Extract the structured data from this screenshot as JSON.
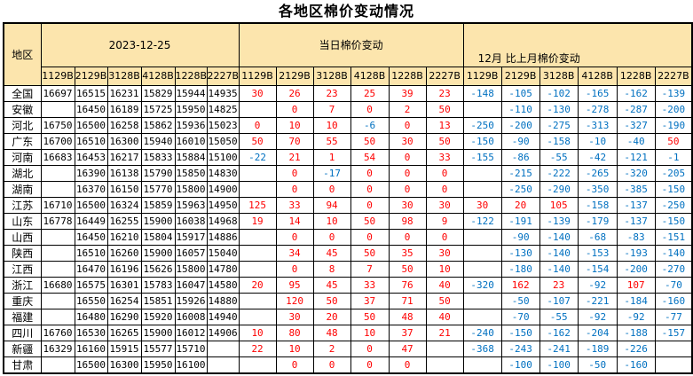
{
  "title": "各地区棉价变动情况",
  "colors": {
    "header_bg": "#FCE5AD",
    "positive_change": "#FE0000",
    "negative_change": "#0070C0",
    "grid_line": "#000000"
  },
  "table": {
    "region_header": "地区",
    "groups": [
      {
        "label": "2023-12-25",
        "columns": [
          "1129B",
          "2129B",
          "3128B",
          "4128B",
          "1228B",
          "2227B"
        ]
      },
      {
        "label": "当日棉价变动",
        "columns": [
          "1129B",
          "2129B",
          "3128B",
          "4128B",
          "1228B",
          "2227B"
        ]
      },
      {
        "label": "12月 比上月棉价变动",
        "columns": [
          "1129B",
          "2129B",
          "3128B",
          "4128B",
          "1228B",
          "2227B"
        ]
      }
    ],
    "rows": [
      {
        "region": "全国",
        "prices": [
          "16697",
          "16515",
          "16231",
          "15829",
          "15944",
          "14935"
        ],
        "daily": [
          "30",
          "26",
          "23",
          "25",
          "39",
          "23"
        ],
        "monthly": [
          "-148",
          "-105",
          "-102",
          "-165",
          "-162",
          "-139"
        ]
      },
      {
        "region": "安徽",
        "prices": [
          "",
          "16450",
          "16189",
          "15725",
          "15950",
          "14825"
        ],
        "daily": [
          "",
          "0",
          "7",
          "0",
          "2",
          "50"
        ],
        "monthly": [
          "",
          "-110",
          "-130",
          "-278",
          "-287",
          "-200"
        ]
      },
      {
        "region": "河北",
        "prices": [
          "16750",
          "16500",
          "16258",
          "15862",
          "15936",
          "15023"
        ],
        "daily": [
          "0",
          "10",
          "10",
          "-6",
          "0",
          "13"
        ],
        "monthly": [
          "-250",
          "-200",
          "-275",
          "-313",
          "-327",
          "-190"
        ]
      },
      {
        "region": "广东",
        "prices": [
          "16700",
          "16510",
          "16300",
          "15940",
          "16010",
          "15050"
        ],
        "daily": [
          "50",
          "70",
          "55",
          "50",
          "30",
          "50"
        ],
        "monthly": [
          "-150",
          "-90",
          "-158",
          "-10",
          "-40",
          "50"
        ]
      },
      {
        "region": "河南",
        "prices": [
          "16683",
          "16453",
          "16217",
          "15833",
          "15884",
          "15100"
        ],
        "daily": [
          "-22",
          "21",
          "1",
          "54",
          "0",
          "33"
        ],
        "monthly": [
          "-155",
          "-86",
          "-55",
          "-42",
          "-121",
          "-1"
        ]
      },
      {
        "region": "湖北",
        "prices": [
          "",
          "16390",
          "16138",
          "15790",
          "15850",
          "14830"
        ],
        "daily": [
          "",
          "0",
          "-17",
          "0",
          "0",
          "0"
        ],
        "monthly": [
          "",
          "-215",
          "-222",
          "-265",
          "-320",
          "-205"
        ]
      },
      {
        "region": "湖南",
        "prices": [
          "",
          "16370",
          "16150",
          "15770",
          "15800",
          "14900"
        ],
        "daily": [
          "",
          "0",
          "0",
          "0",
          "0",
          "0"
        ],
        "monthly": [
          "",
          "-250",
          "-290",
          "-350",
          "-385",
          "-150"
        ]
      },
      {
        "region": "江苏",
        "prices": [
          "16710",
          "16500",
          "16324",
          "15859",
          "15963",
          "14950"
        ],
        "daily": [
          "125",
          "33",
          "94",
          "0",
          "30",
          "30"
        ],
        "monthly": [
          "30",
          "20",
          "105",
          "-158",
          "-137",
          "-250"
        ]
      },
      {
        "region": "山东",
        "prices": [
          "16778",
          "16449",
          "16255",
          "15900",
          "16038",
          "14968"
        ],
        "daily": [
          "19",
          "14",
          "10",
          "50",
          "98",
          "9"
        ],
        "monthly": [
          "-122",
          "-191",
          "-139",
          "-179",
          "-137",
          "-150"
        ]
      },
      {
        "region": "山西",
        "prices": [
          "",
          "16450",
          "16210",
          "15804",
          "15917",
          "14886"
        ],
        "daily": [
          "",
          "0",
          "0",
          "0",
          "0",
          "0"
        ],
        "monthly": [
          "",
          "-90",
          "-140",
          "-68",
          "-83",
          "-151"
        ]
      },
      {
        "region": "陕西",
        "prices": [
          "",
          "16510",
          "16260",
          "15900",
          "16057",
          "15040"
        ],
        "daily": [
          "",
          "34",
          "45",
          "50",
          "35",
          "30"
        ],
        "monthly": [
          "",
          "-130",
          "-140",
          "-153",
          "-193",
          "-140"
        ]
      },
      {
        "region": "江西",
        "prices": [
          "",
          "16470",
          "16196",
          "15626",
          "15800",
          "14780"
        ],
        "daily": [
          "",
          "0",
          "8",
          "7",
          "50",
          "10"
        ],
        "monthly": [
          "",
          "-180",
          "-140",
          "-154",
          "-200",
          "-270"
        ]
      },
      {
        "region": "浙江",
        "prices": [
          "16680",
          "16575",
          "16301",
          "15783",
          "16047",
          "14580"
        ],
        "daily": [
          "20",
          "95",
          "45",
          "33",
          "76",
          "40"
        ],
        "monthly": [
          "-320",
          "162",
          "23",
          "-92",
          "107",
          "-70"
        ]
      },
      {
        "region": "重庆",
        "prices": [
          "",
          "16550",
          "16254",
          "15851",
          "15926",
          "14880"
        ],
        "daily": [
          "",
          "120",
          "50",
          "37",
          "71",
          "50"
        ],
        "monthly": [
          "",
          "-50",
          "-107",
          "-221",
          "-184",
          "-160"
        ]
      },
      {
        "region": "福建",
        "prices": [
          "",
          "16480",
          "16290",
          "15920",
          "16008",
          "14940"
        ],
        "daily": [
          "",
          "30",
          "20",
          "50",
          "48",
          "40"
        ],
        "monthly": [
          "",
          "-70",
          "-55",
          "-92",
          "-92",
          "-77"
        ]
      },
      {
        "region": "四川",
        "prices": [
          "16760",
          "16530",
          "16265",
          "15900",
          "16012",
          "14906"
        ],
        "daily": [
          "10",
          "80",
          "48",
          "10",
          "37",
          "21"
        ],
        "monthly": [
          "-240",
          "-150",
          "-162",
          "-204",
          "-188",
          "-157"
        ]
      },
      {
        "region": "新疆",
        "prices": [
          "16329",
          "16160",
          "15915",
          "15577",
          "15710",
          ""
        ],
        "daily": [
          "22",
          "10",
          "2",
          "0",
          "47",
          ""
        ],
        "monthly": [
          "-368",
          "-243",
          "-241",
          "-189",
          "-226",
          ""
        ]
      },
      {
        "region": "甘肃",
        "prices": [
          "",
          "16500",
          "16300",
          "15950",
          "16100",
          ""
        ],
        "daily": [
          "",
          "0",
          "0",
          "0",
          "0",
          ""
        ],
        "monthly": [
          "",
          "-100",
          "-100",
          "-50",
          "-160",
          ""
        ]
      }
    ]
  }
}
